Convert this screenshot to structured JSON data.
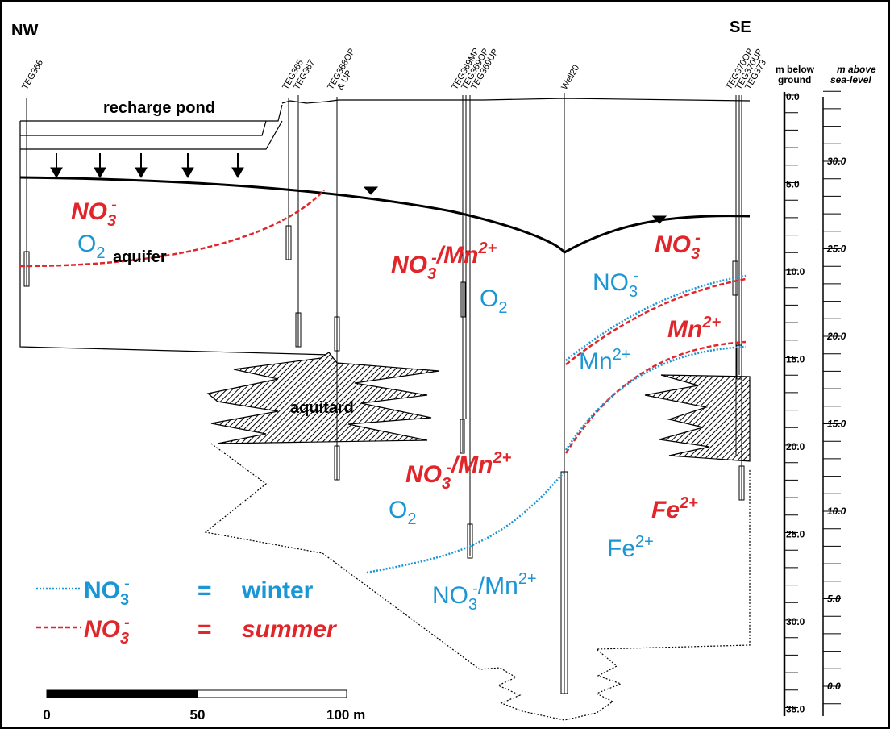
{
  "header": {
    "left": "NW",
    "right": "SE"
  },
  "wells": [
    [
      "TEG366"
    ],
    [
      "TEG365"
    ],
    [
      "TEG367"
    ],
    [
      "TEG368OP",
      "& UP"
    ],
    [
      "TEG369MP"
    ],
    [
      "TEG369OP"
    ],
    [
      "TEG369UP"
    ],
    [
      "Well20"
    ],
    [
      "TEG370OP"
    ],
    [
      "TEG370UP"
    ],
    [
      "TEG373"
    ]
  ],
  "scales": {
    "depth_title": [
      "m below",
      "ground"
    ],
    "depth_labels": [
      "0.0",
      "5.0",
      "10.0",
      "15.0",
      "20.0",
      "25.0",
      "30.0",
      "35.0"
    ],
    "elevation_title": [
      "m above",
      "sea-level"
    ],
    "elevation_labels": [
      "30.0",
      "25.0",
      "20.0",
      "15.0",
      "10.0",
      "5.0",
      "0.0"
    ]
  },
  "units": {
    "pond": "recharge pond",
    "aquifer": "aquifer",
    "aquitard": "aquitard"
  },
  "labels": [
    [
      {
        "text": "NO",
        "sub": "3",
        "sup": "-"
      }
    ],
    [
      {
        "text": "O",
        "sub": "2"
      }
    ],
    [
      {
        "text": "NO",
        "sub": "3",
        "sup": "-"
      },
      {
        "text": "/Mn",
        "sup": "2+"
      }
    ],
    [
      {
        "text": "O",
        "sub": "2"
      }
    ],
    [
      {
        "text": "NO",
        "sub": "3",
        "sup": "-"
      }
    ],
    [
      {
        "text": "NO",
        "sub": "3",
        "sup": "-"
      }
    ],
    [
      {
        "text": "Mn",
        "sup": "2+"
      }
    ],
    [
      {
        "text": "Mn",
        "sup": "2+"
      }
    ],
    [
      {
        "text": "NO",
        "sub": "3",
        "sup": "-"
      },
      {
        "text": "/Mn",
        "sup": "2+"
      }
    ],
    [
      {
        "text": "O",
        "sub": "2"
      }
    ],
    [
      {
        "text": "Fe",
        "sup": "2+"
      }
    ],
    [
      {
        "text": "Fe",
        "sup": "2+"
      }
    ],
    [
      {
        "text": "NO",
        "sub": "3",
        "sup": "-"
      },
      {
        "text": "/Mn",
        "sup": "2+"
      }
    ]
  ],
  "legend": [
    {
      "species": [
        {
          "text": "NO",
          "sub": "3",
          "sup": "-"
        }
      ],
      "equals": "=",
      "season": "winter"
    },
    {
      "species": [
        {
          "text": "NO",
          "sub": "3",
          "sup": "-"
        }
      ],
      "equals": "=",
      "season": "summer"
    }
  ],
  "scale_bar": [
    "0",
    "50",
    "100 m"
  ]
}
